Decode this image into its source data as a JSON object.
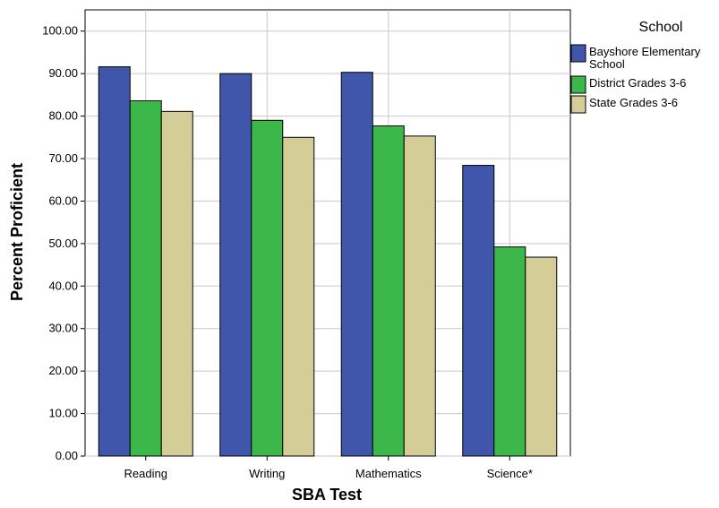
{
  "chart_data": {
    "type": "bar",
    "xlabel": "SBA Test",
    "ylabel": "Percent Proficient",
    "categories": [
      "Reading",
      "Writing",
      "Mathematics",
      "Science*"
    ],
    "series": [
      {
        "name": "Bayshore Elementary School",
        "color": "#3f56aa",
        "values": [
          91.6,
          90.0,
          90.3,
          68.4
        ]
      },
      {
        "name": "District Grades 3-6",
        "color": "#3cb84a",
        "values": [
          83.6,
          79.0,
          77.7,
          49.2
        ]
      },
      {
        "name": "State Grades 3-6",
        "color": "#d5cd98",
        "values": [
          81.1,
          75.0,
          75.3,
          46.8
        ]
      }
    ],
    "ylim": [
      0,
      105
    ],
    "yticks": [
      "0.00",
      "10.00",
      "20.00",
      "30.00",
      "40.00",
      "50.00",
      "60.00",
      "70.00",
      "80.00",
      "90.00",
      "100.00"
    ],
    "grid": true,
    "legend": {
      "title": "School",
      "placement": "right"
    }
  }
}
